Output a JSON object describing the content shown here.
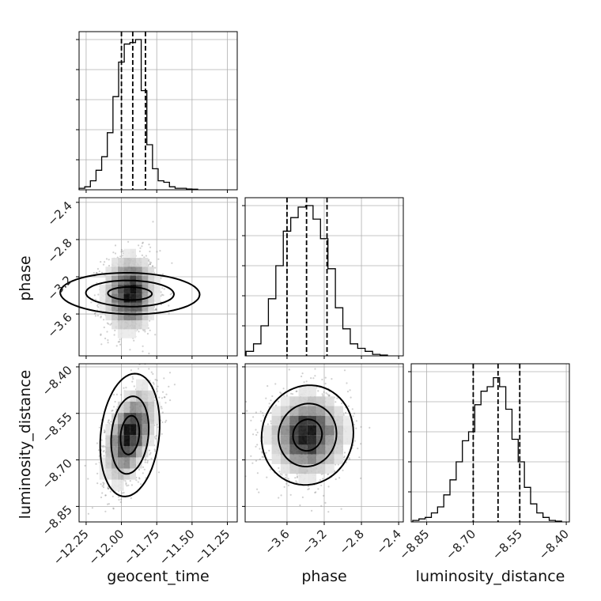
{
  "chart_data": {
    "type": "corner",
    "grid": true,
    "parameters": [
      {
        "name": "geocent_time",
        "axis_label": "geocent_time",
        "range": [
          -12.3,
          -11.18
        ],
        "ticks": [
          -12.25,
          -12.0,
          -11.75,
          -11.5,
          -11.25
        ],
        "tick_labels": [
          "−12.25",
          "−12.00",
          "−11.75",
          "−11.50",
          "−11.25"
        ],
        "quantiles": [
          -12.0,
          -11.92,
          -11.83
        ],
        "hist": [
          {
            "x": -12.28,
            "y": 0.01
          },
          {
            "x": -12.24,
            "y": 0.02
          },
          {
            "x": -12.2,
            "y": 0.06
          },
          {
            "x": -12.16,
            "y": 0.13
          },
          {
            "x": -12.12,
            "y": 0.22
          },
          {
            "x": -12.08,
            "y": 0.38
          },
          {
            "x": -12.04,
            "y": 0.62
          },
          {
            "x": -12.0,
            "y": 0.85
          },
          {
            "x": -11.96,
            "y": 0.97
          },
          {
            "x": -11.92,
            "y": 0.98
          },
          {
            "x": -11.88,
            "y": 1.0
          },
          {
            "x": -11.84,
            "y": 0.66
          },
          {
            "x": -11.8,
            "y": 0.3
          },
          {
            "x": -11.76,
            "y": 0.14
          },
          {
            "x": -11.72,
            "y": 0.06
          },
          {
            "x": -11.68,
            "y": 0.05
          },
          {
            "x": -11.64,
            "y": 0.02
          },
          {
            "x": -11.6,
            "y": 0.01
          },
          {
            "x": -11.56,
            "y": 0.01
          },
          {
            "x": -11.52,
            "y": 0.005
          },
          {
            "x": -11.48,
            "y": 0.004
          }
        ]
      },
      {
        "name": "phase",
        "axis_label": "phase",
        "range": [
          -4.05,
          -2.35
        ],
        "ticks": [
          -3.6,
          -3.2,
          -2.8,
          -2.4
        ],
        "tick_labels": [
          "−3.6",
          "−3.2",
          "−2.8",
          "−2.4"
        ],
        "quantiles": [
          -3.6,
          -3.39,
          -3.17
        ],
        "hist": [
          {
            "x": -4.0,
            "y": 0.03
          },
          {
            "x": -3.92,
            "y": 0.08
          },
          {
            "x": -3.84,
            "y": 0.2
          },
          {
            "x": -3.76,
            "y": 0.38
          },
          {
            "x": -3.68,
            "y": 0.6
          },
          {
            "x": -3.6,
            "y": 0.83
          },
          {
            "x": -3.52,
            "y": 0.92
          },
          {
            "x": -3.44,
            "y": 0.99
          },
          {
            "x": -3.36,
            "y": 1.0
          },
          {
            "x": -3.28,
            "y": 0.91
          },
          {
            "x": -3.2,
            "y": 0.78
          },
          {
            "x": -3.12,
            "y": 0.58
          },
          {
            "x": -3.04,
            "y": 0.32
          },
          {
            "x": -2.96,
            "y": 0.18
          },
          {
            "x": -2.88,
            "y": 0.08
          },
          {
            "x": -2.8,
            "y": 0.05
          },
          {
            "x": -2.72,
            "y": 0.03
          },
          {
            "x": -2.64,
            "y": 0.01
          },
          {
            "x": -2.56,
            "y": 0.005
          }
        ]
      },
      {
        "name": "luminosity_distance",
        "axis_label": "luminosity_distance",
        "range": [
          -8.9,
          -8.39
        ],
        "ticks": [
          -8.85,
          -8.7,
          -8.55,
          -8.4
        ],
        "tick_labels": [
          "−8.85",
          "−8.70",
          "−8.55",
          "−8.40"
        ],
        "quantiles": [
          -8.7,
          -8.62,
          -8.55
        ],
        "hist": [
          {
            "x": -8.885,
            "y": 0.01
          },
          {
            "x": -8.865,
            "y": 0.02
          },
          {
            "x": -8.845,
            "y": 0.03
          },
          {
            "x": -8.825,
            "y": 0.06
          },
          {
            "x": -8.805,
            "y": 0.1
          },
          {
            "x": -8.785,
            "y": 0.18
          },
          {
            "x": -8.765,
            "y": 0.28
          },
          {
            "x": -8.745,
            "y": 0.4
          },
          {
            "x": -8.725,
            "y": 0.54
          },
          {
            "x": -8.705,
            "y": 0.6
          },
          {
            "x": -8.685,
            "y": 0.78
          },
          {
            "x": -8.665,
            "y": 0.87
          },
          {
            "x": -8.645,
            "y": 0.9
          },
          {
            "x": -8.625,
            "y": 0.96
          },
          {
            "x": -8.605,
            "y": 0.9
          },
          {
            "x": -8.585,
            "y": 0.75
          },
          {
            "x": -8.565,
            "y": 0.55
          },
          {
            "x": -8.545,
            "y": 0.4
          },
          {
            "x": -8.525,
            "y": 0.23
          },
          {
            "x": -8.505,
            "y": 0.12
          },
          {
            "x": -8.485,
            "y": 0.06
          },
          {
            "x": -8.465,
            "y": 0.03
          },
          {
            "x": -8.445,
            "y": 0.01
          },
          {
            "x": -8.425,
            "y": 0.005
          }
        ]
      }
    ],
    "pairs": [
      {
        "x": "geocent_time",
        "y": "phase",
        "center": [
          -11.94,
          -3.38
        ],
        "sigma": [
          0.09,
          0.2
        ],
        "rho": 0.05
      },
      {
        "x": "geocent_time",
        "y": "luminosity_distance",
        "center": [
          -11.94,
          -8.62
        ],
        "sigma": [
          0.09,
          0.075
        ],
        "rho": 0.5
      },
      {
        "x": "phase",
        "y": "luminosity_distance",
        "center": [
          -3.38,
          -8.62
        ],
        "sigma": [
          0.2,
          0.065
        ],
        "rho": 0.05
      }
    ]
  }
}
